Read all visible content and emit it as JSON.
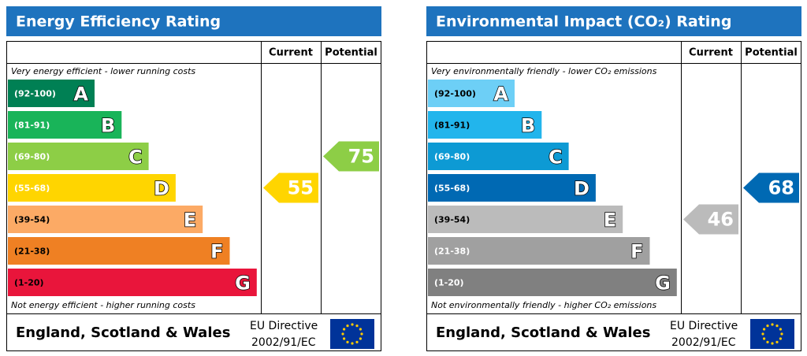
{
  "panels": [
    {
      "title": "Energy Efficiency Rating",
      "columns": [
        "Current",
        "Potential"
      ],
      "top_note": "Very energy efficient - lower running costs",
      "bottom_note": "Not energy efficient - higher running costs",
      "bands": [
        {
          "range": "(92-100)",
          "letter": "A",
          "color": "#008054"
        },
        {
          "range": "(81-91)",
          "letter": "B",
          "color": "#19b459"
        },
        {
          "range": "(69-80)",
          "letter": "C",
          "color": "#8dce46"
        },
        {
          "range": "(55-68)",
          "letter": "D",
          "color": "#ffd500"
        },
        {
          "range": "(39-54)",
          "letter": "E",
          "color": "#fcaa65"
        },
        {
          "range": "(21-38)",
          "letter": "F",
          "color": "#ef8023"
        },
        {
          "range": "(1-20)",
          "letter": "G",
          "color": "#e9153b"
        }
      ],
      "current": 55,
      "potential": 75,
      "footer": {
        "region": "England, Scotland & Wales",
        "directive": "EU Directive",
        "code": "2002/91/EC"
      }
    },
    {
      "title": "Environmental Impact (CO₂) Rating",
      "columns": [
        "Current",
        "Potential"
      ],
      "top_note": "Very environmentally friendly - lower CO₂ emissions",
      "bottom_note": "Not environmentally friendly - higher CO₂ emissions",
      "bands": [
        {
          "range": "(92-100)",
          "letter": "A",
          "color": "#6dcff6"
        },
        {
          "range": "(81-91)",
          "letter": "B",
          "color": "#22b5ec"
        },
        {
          "range": "(69-80)",
          "letter": "C",
          "color": "#0d9ad4"
        },
        {
          "range": "(55-68)",
          "letter": "D",
          "color": "#0069b3"
        },
        {
          "range": "(39-54)",
          "letter": "E",
          "color": "#bbbbbb"
        },
        {
          "range": "(21-38)",
          "letter": "F",
          "color": "#a0a0a0"
        },
        {
          "range": "(1-20)",
          "letter": "G",
          "color": "#808080"
        }
      ],
      "current": 46,
      "potential": 68,
      "footer": {
        "region": "England, Scotland & Wales",
        "directive": "EU Directive",
        "code": "2002/91/EC"
      }
    }
  ]
}
